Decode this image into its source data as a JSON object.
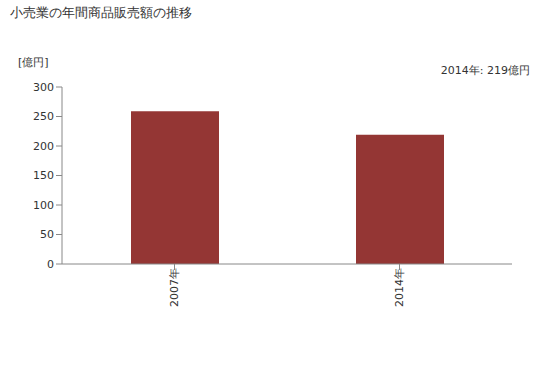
{
  "chart_data": {
    "type": "bar",
    "title": "小売業の年間商品販売額の推移",
    "y_label": "[億円]",
    "annotation": "2014年: 219億円",
    "categories": [
      "2007年",
      "2014年"
    ],
    "values": [
      259,
      219
    ],
    "color": "#943634",
    "ylim": [
      0,
      300
    ],
    "yticks": [
      0,
      50,
      100,
      150,
      200,
      250,
      300
    ],
    "grid": false
  }
}
